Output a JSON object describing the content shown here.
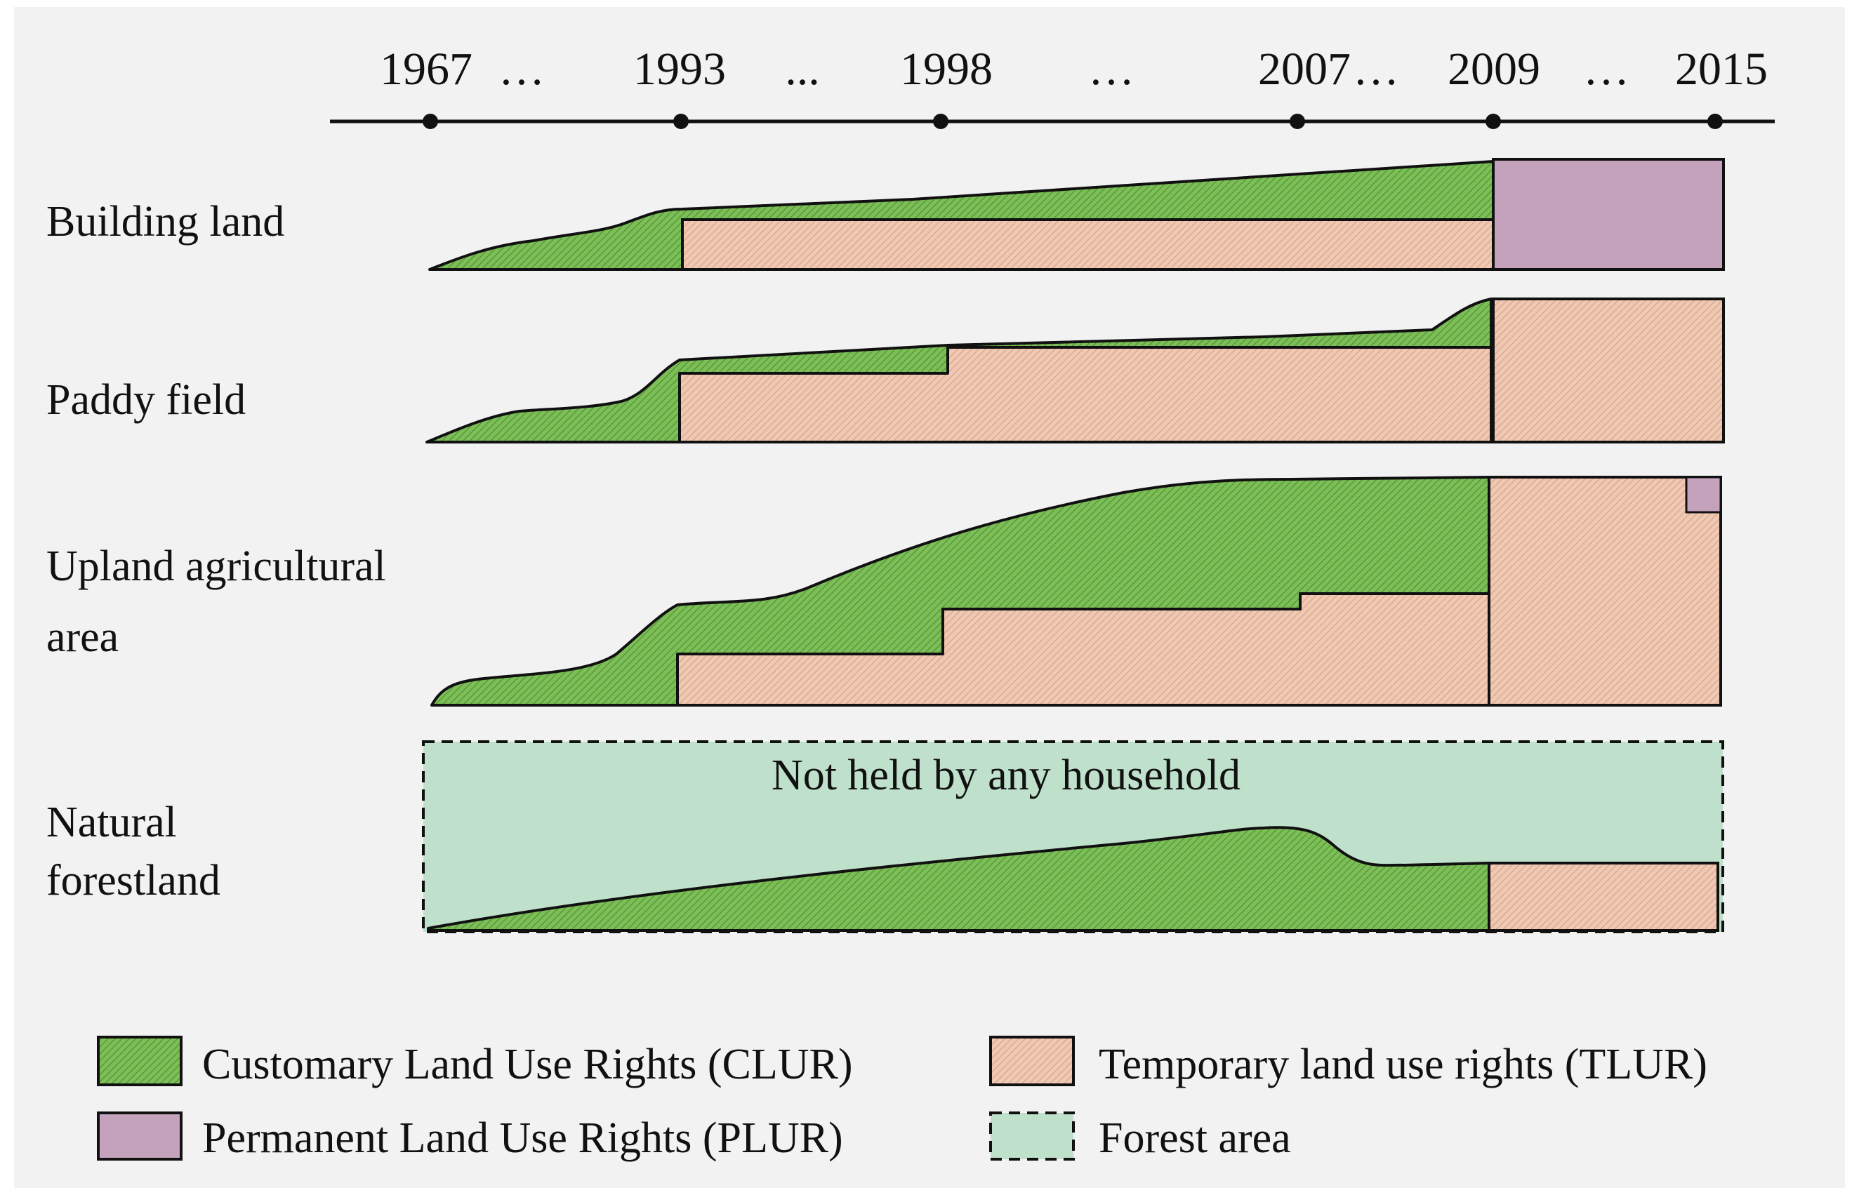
{
  "timeline": {
    "labels": [
      "1967",
      "…",
      "1993",
      "...",
      "1998",
      "…",
      "2007",
      "…",
      "2009",
      "…",
      "2015"
    ]
  },
  "rows": {
    "building_land": "Building land",
    "paddy_field": "Paddy field",
    "upland_line1": "Upland agricultural",
    "upland_line2": "area",
    "forest_line1": "Natural",
    "forest_line2": "forestland"
  },
  "annotation": {
    "not_held": "Not held by any household"
  },
  "legend": {
    "clur": "Customary Land Use Rights (CLUR)",
    "tlur": "Temporary land use rights (TLUR)",
    "plur": "Permanent Land Use Rights (PLUR)",
    "forest": "Forest area"
  },
  "colors": {
    "clur": "#7cbf56",
    "tlur": "#efc9b4",
    "plur": "#c5a2bb",
    "forest": "#bfe1cb",
    "background": "#f2f2f2"
  }
}
